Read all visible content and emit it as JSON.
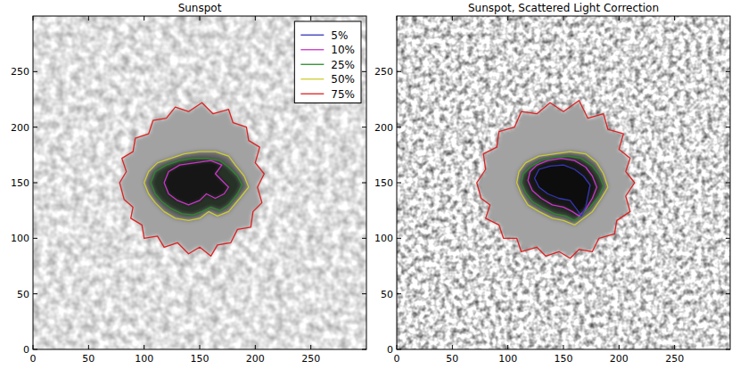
{
  "chart_data": [
    {
      "type": "contour",
      "title": "Sunspot",
      "xlim": [
        0,
        300
      ],
      "ylim": [
        0,
        300
      ],
      "xticks": [
        0,
        50,
        100,
        150,
        200,
        250
      ],
      "yticks": [
        0,
        50,
        100,
        150,
        200,
        250
      ],
      "legend": "upper right",
      "series": [
        {
          "name": "5%",
          "color": "#3636b8",
          "x": [],
          "values": []
        },
        {
          "name": "10%",
          "color": "#cc33cc",
          "x": [
            118,
            122,
            130,
            140,
            150,
            156,
            164,
            172,
            176,
            170,
            164,
            170,
            160,
            146,
            132,
            122
          ],
          "values": [
            150,
            140,
            134,
            130,
            134,
            140,
            136,
            140,
            146,
            152,
            158,
            166,
            170,
            168,
            166,
            160
          ]
        },
        {
          "name": "25%",
          "color": "#2a8a2a",
          "x": [
            106,
            110,
            116,
            124,
            134,
            144,
            152,
            160,
            168,
            176,
            184,
            188,
            184,
            176,
            168,
            156,
            144,
            132,
            120,
            110
          ],
          "values": [
            150,
            140,
            133,
            127,
            122,
            121,
            124,
            128,
            125,
            130,
            140,
            148,
            156,
            164,
            170,
            172,
            172,
            170,
            166,
            160
          ]
        },
        {
          "name": "50%",
          "color": "#cccc33",
          "x": [
            100,
            104,
            110,
            118,
            128,
            140,
            150,
            158,
            166,
            176,
            186,
            194,
            190,
            182,
            176,
            164,
            150,
            136,
            124,
            112,
            104
          ],
          "values": [
            150,
            140,
            132,
            124,
            118,
            116,
            118,
            124,
            120,
            124,
            136,
            146,
            156,
            166,
            174,
            178,
            178,
            176,
            172,
            168,
            160
          ]
        },
        {
          "name": "75%",
          "color": "#dd2222",
          "x": [
            78,
            82,
            90,
            88,
            98,
            100,
            112,
            118,
            130,
            140,
            150,
            160,
            166,
            178,
            184,
            196,
            198,
            206,
            202,
            208,
            200,
            204,
            194,
            192,
            180,
            176,
            162,
            152,
            140,
            128,
            120,
            108,
            104,
            92,
            90,
            80,
            84
          ],
          "values": [
            150,
            135,
            128,
            118,
            112,
            100,
            102,
            92,
            96,
            86,
            92,
            84,
            94,
            96,
            108,
            110,
            124,
            132,
            146,
            158,
            168,
            182,
            188,
            200,
            204,
            216,
            212,
            222,
            214,
            218,
            208,
            206,
            194,
            190,
            178,
            172,
            160
          ]
        }
      ]
    },
    {
      "type": "contour",
      "title": "Sunspot, Scattered Light Correction",
      "xlim": [
        0,
        300
      ],
      "ylim": [
        0,
        300
      ],
      "xticks": [
        0,
        50,
        100,
        150,
        200,
        250
      ],
      "yticks": [
        0,
        50,
        100,
        150,
        200,
        250
      ],
      "series": [
        {
          "name": "5%",
          "color": "#3636b8",
          "x": [
            124,
            128,
            136,
            146,
            156,
            162,
            166,
            170,
            172,
            174,
            168,
            160,
            150,
            138,
            128
          ],
          "values": [
            154,
            146,
            140,
            136,
            134,
            126,
            120,
            128,
            138,
            148,
            156,
            162,
            166,
            165,
            162
          ]
        },
        {
          "name": "10%",
          "color": "#cc33cc",
          "x": [
            118,
            122,
            130,
            140,
            150,
            158,
            164,
            170,
            176,
            180,
            176,
            170,
            160,
            148,
            136,
            126,
            120
          ],
          "values": [
            152,
            143,
            136,
            130,
            128,
            124,
            120,
            126,
            136,
            146,
            156,
            164,
            170,
            172,
            170,
            166,
            160
          ]
        },
        {
          "name": "25%",
          "color": "#2a8a2a",
          "x": [
            112,
            116,
            122,
            132,
            142,
            152,
            160,
            166,
            174,
            182,
            186,
            182,
            176,
            166,
            154,
            142,
            130,
            120,
            114
          ],
          "values": [
            150,
            141,
            133,
            127,
            122,
            120,
            116,
            121,
            128,
            138,
            147,
            157,
            165,
            172,
            174,
            173,
            170,
            164,
            158
          ]
        },
        {
          "name": "50%",
          "color": "#cccc33",
          "x": [
            108,
            112,
            118,
            128,
            140,
            150,
            160,
            168,
            176,
            184,
            190,
            186,
            180,
            170,
            156,
            142,
            128,
            116,
            110
          ],
          "values": [
            150,
            140,
            130,
            124,
            118,
            116,
            112,
            118,
            124,
            136,
            146,
            158,
            168,
            176,
            178,
            176,
            174,
            168,
            160
          ]
        },
        {
          "name": "75%",
          "color": "#dd2222",
          "x": [
            72,
            76,
            84,
            80,
            92,
            96,
            108,
            112,
            126,
            134,
            146,
            156,
            164,
            176,
            182,
            196,
            198,
            210,
            206,
            214,
            206,
            210,
            200,
            204,
            190,
            186,
            172,
            164,
            150,
            138,
            126,
            112,
            106,
            92,
            90,
            78,
            80
          ],
          "values": [
            150,
            136,
            130,
            118,
            112,
            100,
            100,
            88,
            92,
            84,
            88,
            82,
            90,
            88,
            100,
            104,
            116,
            124,
            138,
            150,
            160,
            172,
            180,
            194,
            198,
            212,
            208,
            224,
            214,
            222,
            212,
            214,
            200,
            196,
            182,
            176,
            162
          ]
        }
      ]
    }
  ]
}
